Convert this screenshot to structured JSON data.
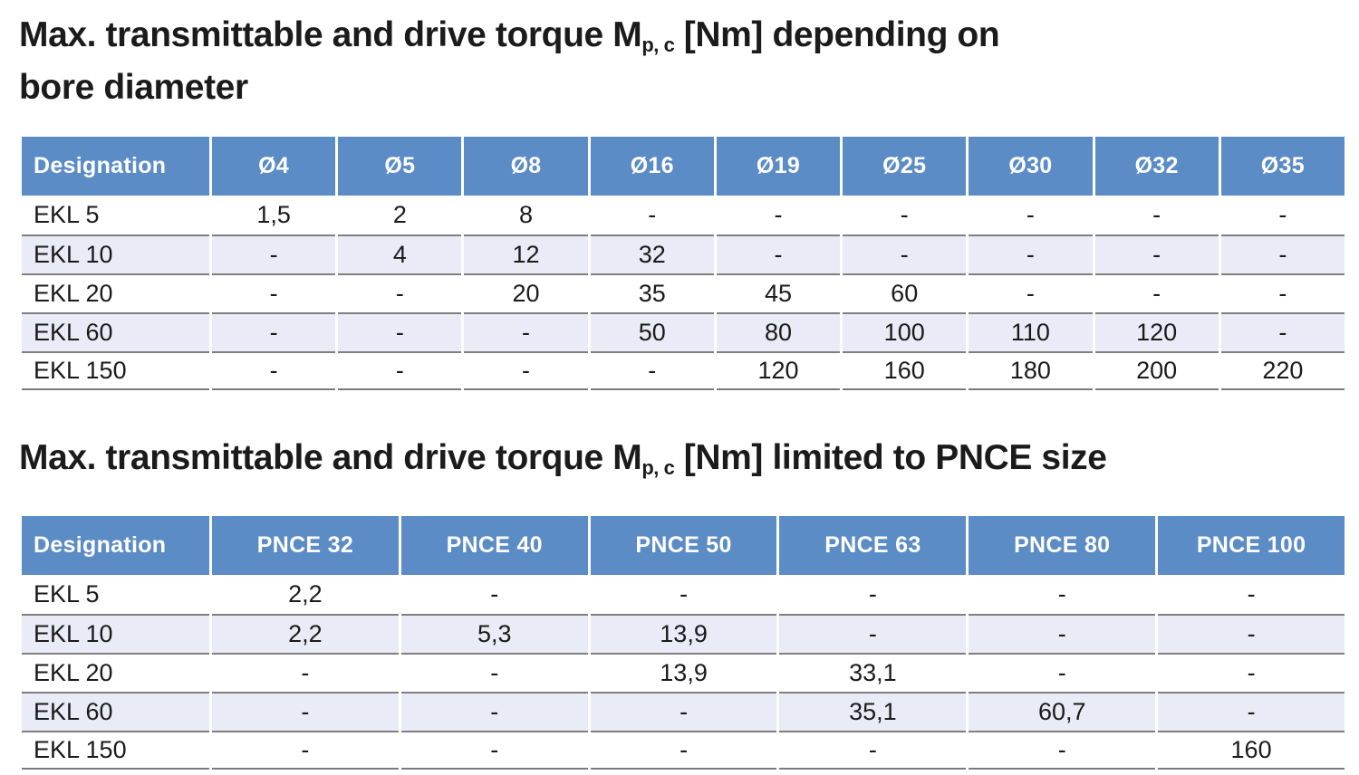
{
  "titles": {
    "bore": {
      "prefix": "Max. transmittable and drive torque M",
      "subscript": "p, c",
      "suffix": " [Nm] depending on",
      "line2": "bore diameter"
    },
    "pnce": {
      "prefix": "Max. transmittable and drive torque M",
      "subscript": "p, c",
      "suffix": " [Nm] limited to PNCE size"
    }
  },
  "colors": {
    "header_bg": "#5b8cc6",
    "header_text": "#ffffff",
    "row_alt_bg": "#e9ebf7",
    "row_separator": "#7f7f7f",
    "body_text": "#1a1a1a"
  },
  "tables": [
    {
      "name": "bore-diameter-table",
      "headers": [
        "Designation",
        "Ø4",
        "Ø5",
        "Ø8",
        "Ø16",
        "Ø19",
        "Ø25",
        "Ø30",
        "Ø32",
        "Ø35"
      ],
      "rows": [
        {
          "label": "EKL 5",
          "values": [
            "1,5",
            "2",
            "8",
            "-",
            "-",
            "-",
            "-",
            "-",
            "-"
          ]
        },
        {
          "label": "EKL 10",
          "values": [
            "-",
            "4",
            "12",
            "32",
            "-",
            "-",
            "-",
            "-",
            "-"
          ]
        },
        {
          "label": "EKL 20",
          "values": [
            "-",
            "-",
            "20",
            "35",
            "45",
            "60",
            "-",
            "-",
            "-"
          ]
        },
        {
          "label": "EKL 60",
          "values": [
            "-",
            "-",
            "-",
            "50",
            "80",
            "100",
            "110",
            "120",
            "-"
          ]
        },
        {
          "label": "EKL 150",
          "values": [
            "-",
            "-",
            "-",
            "-",
            "120",
            "160",
            "180",
            "200",
            "220"
          ]
        }
      ]
    },
    {
      "name": "pnce-size-table",
      "headers": [
        "Designation",
        "PNCE 32",
        "PNCE 40",
        "PNCE 50",
        "PNCE 63",
        "PNCE 80",
        "PNCE 100"
      ],
      "rows": [
        {
          "label": "EKL 5",
          "values": [
            "2,2",
            "-",
            "-",
            "-",
            "-",
            "-"
          ]
        },
        {
          "label": "EKL 10",
          "values": [
            "2,2",
            "5,3",
            "13,9",
            "-",
            "-",
            "-"
          ]
        },
        {
          "label": "EKL 20",
          "values": [
            "-",
            "-",
            "13,9",
            "33,1",
            "-",
            "-"
          ]
        },
        {
          "label": "EKL 60",
          "values": [
            "-",
            "-",
            "-",
            "35,1",
            "60,7",
            "-"
          ]
        },
        {
          "label": "EKL 150",
          "values": [
            "-",
            "-",
            "-",
            "-",
            "-",
            "160"
          ]
        }
      ]
    }
  ]
}
